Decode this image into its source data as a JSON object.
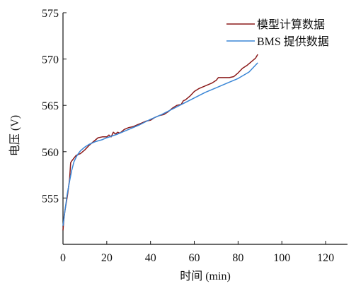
{
  "chart_data": {
    "type": "line",
    "title": "",
    "xlabel": "时间 (min)",
    "ylabel": "电压 (V)",
    "xlim": [
      0,
      130
    ],
    "ylim": [
      550,
      575
    ],
    "xticks": [
      0,
      20,
      40,
      60,
      80,
      100,
      120
    ],
    "yticks": [
      555,
      560,
      565,
      570,
      575
    ],
    "xtick_labels": [
      "0",
      "20",
      "40",
      "60",
      "80",
      "100",
      "120"
    ],
    "ytick_labels": [
      "555",
      "560",
      "565",
      "570",
      "575"
    ],
    "grid": false,
    "legend_position": "top-right",
    "series": [
      {
        "name": "模型计算数据",
        "color": "#8b1a1a",
        "x": [
          0,
          0.5,
          1,
          2,
          3,
          3.5,
          4,
          5,
          6,
          8,
          10,
          12,
          14,
          16,
          18,
          20,
          21,
          22,
          23,
          24,
          25,
          26,
          28,
          30,
          32,
          34,
          36,
          38,
          40,
          42,
          44,
          46,
          48,
          50,
          52,
          54,
          55,
          56,
          58,
          60,
          62,
          64,
          66,
          68,
          70,
          71,
          72,
          74,
          76,
          78,
          80,
          82,
          84,
          86,
          88,
          89
        ],
        "y": [
          551.5,
          553.0,
          553.8,
          555.2,
          557.0,
          558.8,
          559.0,
          559.3,
          559.6,
          559.8,
          560.2,
          560.7,
          561.1,
          561.5,
          561.6,
          561.6,
          561.8,
          561.6,
          562.1,
          561.9,
          562.1,
          562.0,
          562.4,
          562.6,
          562.7,
          562.9,
          563.1,
          563.3,
          563.4,
          563.7,
          563.9,
          564.0,
          564.3,
          564.7,
          565.0,
          565.1,
          565.5,
          565.6,
          566.0,
          566.5,
          566.8,
          567.0,
          567.2,
          567.4,
          567.7,
          568.0,
          568.0,
          568.0,
          568.0,
          568.1,
          568.5,
          569.0,
          569.3,
          569.7,
          570.1,
          570.5
        ]
      },
      {
        "name": "BMS 提供数据",
        "color": "#3a86d6",
        "x": [
          0,
          1,
          2,
          3,
          4,
          5,
          6,
          7,
          8,
          10,
          12,
          15,
          18,
          20,
          25,
          30,
          35,
          40,
          45,
          50,
          55,
          60,
          65,
          70,
          75,
          80,
          85,
          89
        ],
        "y": [
          552.0,
          553.8,
          555.5,
          556.8,
          558.0,
          558.9,
          559.4,
          559.8,
          560.1,
          560.5,
          560.8,
          561.1,
          561.3,
          561.5,
          561.9,
          562.4,
          562.9,
          563.5,
          564.0,
          564.6,
          565.2,
          565.8,
          566.4,
          566.9,
          567.4,
          567.9,
          568.6,
          569.6
        ]
      }
    ]
  }
}
